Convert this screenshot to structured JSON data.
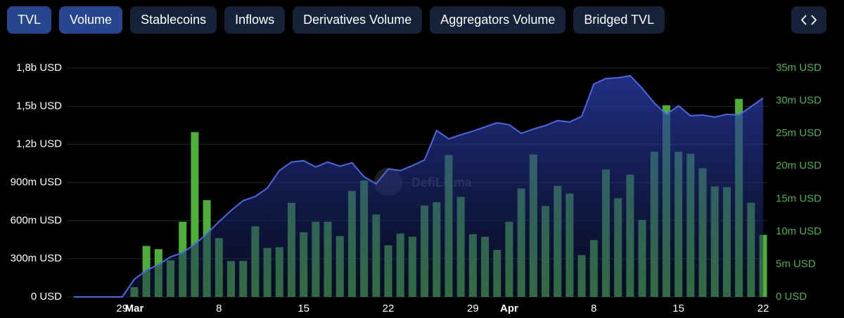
{
  "tabs": [
    {
      "label": "TVL",
      "active": true
    },
    {
      "label": "Volume",
      "active": true
    },
    {
      "label": "Stablecoins",
      "active": false
    },
    {
      "label": "Inflows",
      "active": false
    },
    {
      "label": "Derivatives Volume",
      "active": false
    },
    {
      "label": "Aggregators Volume",
      "active": false
    },
    {
      "label": "Bridged TVL",
      "active": false
    }
  ],
  "chart_data": {
    "type": "bar_line",
    "watermark": "DefiLlama",
    "categories": [
      null,
      null,
      null,
      null,
      "29",
      "Mar",
      null,
      null,
      null,
      null,
      null,
      null,
      "8",
      null,
      null,
      null,
      null,
      null,
      null,
      "15",
      null,
      null,
      null,
      null,
      null,
      null,
      "22",
      null,
      null,
      null,
      null,
      null,
      null,
      "29",
      null,
      null,
      "Apr",
      null,
      null,
      null,
      null,
      null,
      null,
      "8",
      null,
      null,
      null,
      null,
      null,
      null,
      "15",
      null,
      null,
      null,
      null,
      null,
      null,
      "22"
    ],
    "bold_categories": [
      "Mar",
      "Apr"
    ],
    "series": [
      {
        "type": "bar",
        "axis": "y2",
        "color": "#4dae3a",
        "values": [
          null,
          null,
          null,
          null,
          null,
          1.5,
          7.8,
          7.3,
          5.6,
          11.5,
          25.2,
          14.8,
          9.0,
          5.5,
          5.5,
          10.8,
          7.5,
          7.6,
          14.4,
          9.9,
          11.5,
          11.5,
          9.3,
          16.2,
          17.8,
          12.6,
          7.9,
          9.7,
          9.2,
          14.0,
          14.5,
          21.7,
          15.3,
          9.6,
          9.2,
          7.2,
          11.5,
          16.6,
          21.8,
          13.9,
          17.0,
          15.8,
          6.4,
          8.7,
          19.5,
          15.1,
          18.7,
          11.8,
          22.2,
          29.3,
          22.2,
          21.9,
          19.7,
          16.9,
          16.8,
          30.3,
          14.4,
          9.5
        ]
      },
      {
        "type": "line",
        "axis": "y",
        "color": "#4a68e6",
        "values": [
          0,
          0,
          0,
          0,
          0,
          138,
          210,
          254,
          315,
          348,
          414,
          497,
          591,
          680,
          757,
          790,
          856,
          994,
          1061,
          1072,
          1022,
          1061,
          1028,
          1055,
          945,
          890,
          1006,
          994,
          1033,
          1077,
          1309,
          1243,
          1276,
          1304,
          1337,
          1370,
          1354,
          1287,
          1320,
          1348,
          1387,
          1376,
          1420,
          1674,
          1718,
          1724,
          1740,
          1641,
          1525,
          1436,
          1503,
          1425,
          1431,
          1414,
          1436,
          1431,
          1497,
          1564
        ]
      }
    ],
    "ylim": [
      0,
      1800
    ],
    "yticks": [
      {
        "value": 0,
        "label": "0 USD"
      },
      {
        "value": 300,
        "label": "300m USD"
      },
      {
        "value": 600,
        "label": "600m USD"
      },
      {
        "value": 900,
        "label": "900m USD"
      },
      {
        "value": 1200,
        "label": "1,2b USD"
      },
      {
        "value": 1500,
        "label": "1,5b USD"
      },
      {
        "value": 1800,
        "label": "1,8b USD"
      }
    ],
    "y2lim": [
      0,
      35
    ],
    "y2ticks": [
      {
        "value": 0,
        "label": "0 USD"
      },
      {
        "value": 5,
        "label": "5m USD"
      },
      {
        "value": 10,
        "label": "10m USD"
      },
      {
        "value": 15,
        "label": "15m USD"
      },
      {
        "value": 20,
        "label": "20m USD"
      },
      {
        "value": 25,
        "label": "25m USD"
      },
      {
        "value": 30,
        "label": "30m USD"
      },
      {
        "value": 35,
        "label": "35m USD"
      }
    ],
    "grid": true
  }
}
